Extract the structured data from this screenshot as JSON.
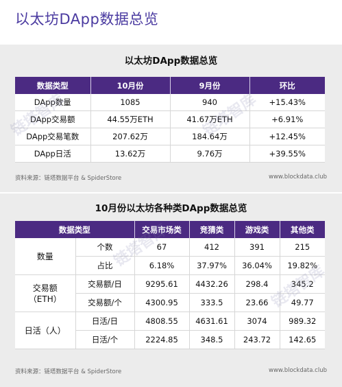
{
  "page_title": "以太坊DApp数据总览",
  "source": "资料来源：链塔数据平台 & SpiderStore",
  "site": "www.blockdata.club",
  "watermark": "链塔智库",
  "table1": {
    "title": "以太坊DApp数据总览",
    "headers": [
      "数据类型",
      "10月份",
      "9月份",
      "环比"
    ],
    "rows": [
      [
        "DApp数量",
        "1085",
        "940",
        "+15.43%"
      ],
      [
        "DApp交易额",
        "44.55万ETH",
        "41.67万ETH",
        "+6.91%"
      ],
      [
        "DApp交易笔数",
        "207.62万",
        "184.64万",
        "+12.45%"
      ],
      [
        "DApp日活",
        "13.62万",
        "9.76万",
        "+39.55%"
      ]
    ]
  },
  "table2": {
    "title": "10月份以太坊各种类DApp数据总览",
    "headers": [
      "数据类型",
      "交易市场类",
      "竞猜类",
      "游戏类",
      "其他类"
    ],
    "groups": [
      {
        "label": "数量",
        "rows": [
          [
            "个数",
            "67",
            "412",
            "391",
            "215"
          ],
          [
            "占比",
            "6.18%",
            "37.97%",
            "36.04%",
            "19.82%"
          ]
        ]
      },
      {
        "label": "交易额\n（ETH）",
        "rows": [
          [
            "交易额/日",
            "9295.61",
            "4432.26",
            "298.4",
            "345.2"
          ],
          [
            "交易额/个",
            "4300.95",
            "333.5",
            "23.66",
            "49.77"
          ]
        ]
      },
      {
        "label": "日活（人）",
        "rows": [
          [
            "日活/日",
            "4808.55",
            "4631.61",
            "3074",
            "989.32"
          ],
          [
            "日活/个",
            "2224.85",
            "348.5",
            "243.72",
            "142.65"
          ]
        ]
      }
    ]
  }
}
